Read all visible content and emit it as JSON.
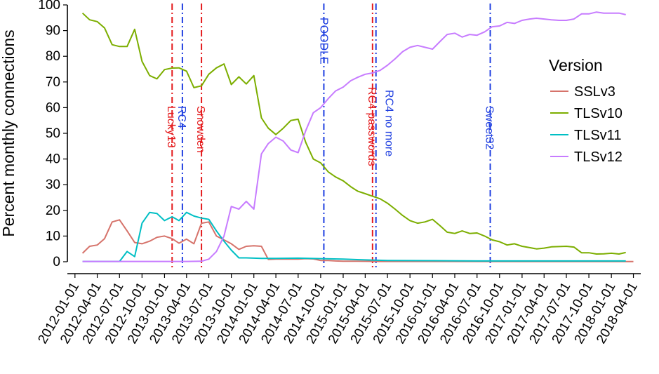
{
  "chart_data": {
    "type": "line",
    "title": "",
    "xlabel": "",
    "ylabel": "Percent monthly connections",
    "ylim": [
      0,
      100
    ],
    "yticks": [
      0,
      10,
      20,
      30,
      40,
      50,
      60,
      70,
      80,
      90,
      100
    ],
    "xlim": [
      "2011-12-01",
      "2018-05-01"
    ],
    "xticks": [
      "2012-01-01",
      "2012-04-01",
      "2012-07-01",
      "2012-10-01",
      "2013-01-01",
      "2013-04-01",
      "2013-07-01",
      "2013-10-01",
      "2014-01-01",
      "2014-04-01",
      "2014-07-01",
      "2014-10-01",
      "2015-01-01",
      "2015-04-01",
      "2015-07-01",
      "2015-10-01",
      "2016-01-01",
      "2016-04-01",
      "2016-07-01",
      "2016-10-01",
      "2017-01-01",
      "2017-04-01",
      "2017-07-01",
      "2017-10-01",
      "2018-01-01",
      "2018-04-01"
    ],
    "grid": false,
    "legend_title": "Version",
    "legend_position": "right",
    "series": [
      {
        "name": "SSLv3",
        "color": "#D6736B",
        "points": [
          [
            "2012-02-01",
            3.3
          ],
          [
            "2012-03-01",
            6
          ],
          [
            "2012-04-01",
            6.5
          ],
          [
            "2012-05-01",
            9
          ],
          [
            "2012-06-01",
            15.5
          ],
          [
            "2012-07-01",
            16.3
          ],
          [
            "2012-08-01",
            12
          ],
          [
            "2012-09-01",
            7.5
          ],
          [
            "2012-10-01",
            7
          ],
          [
            "2012-11-01",
            8
          ],
          [
            "2012-12-01",
            9.5
          ],
          [
            "2013-01-01",
            10
          ],
          [
            "2013-02-01",
            9
          ],
          [
            "2013-03-01",
            7.2
          ],
          [
            "2013-04-01",
            8.8
          ],
          [
            "2013-05-01",
            7
          ],
          [
            "2013-06-01",
            15
          ],
          [
            "2013-07-01",
            15.5
          ],
          [
            "2013-08-01",
            10
          ],
          [
            "2013-09-01",
            8.5
          ],
          [
            "2013-10-01",
            7
          ],
          [
            "2013-11-01",
            4.8
          ],
          [
            "2013-12-01",
            6
          ],
          [
            "2014-01-01",
            6.2
          ],
          [
            "2014-02-01",
            6
          ],
          [
            "2014-03-01",
            0.9
          ],
          [
            "2014-04-01",
            1
          ],
          [
            "2014-05-01",
            1
          ],
          [
            "2014-06-01",
            1
          ],
          [
            "2014-07-01",
            1
          ],
          [
            "2014-08-01",
            1.2
          ],
          [
            "2014-09-01",
            1.1
          ],
          [
            "2014-10-01",
            0.5
          ],
          [
            "2014-11-01",
            0.5
          ],
          [
            "2014-12-01",
            0.3
          ],
          [
            "2015-01-01",
            0.2
          ],
          [
            "2015-03-01",
            0.2
          ],
          [
            "2015-06-01",
            0.1
          ],
          [
            "2016-01-01",
            0.1
          ],
          [
            "2017-01-01",
            0.05
          ],
          [
            "2018-04-01",
            0.05
          ]
        ]
      },
      {
        "name": "TLSv10",
        "color": "#7CAE00",
        "points": [
          [
            "2012-02-01",
            96.8
          ],
          [
            "2012-03-01",
            94.2
          ],
          [
            "2012-04-01",
            93.5
          ],
          [
            "2012-05-01",
            91
          ],
          [
            "2012-06-01",
            84.5
          ],
          [
            "2012-07-01",
            83.8
          ],
          [
            "2012-08-01",
            83.8
          ],
          [
            "2012-09-01",
            90.5
          ],
          [
            "2012-10-01",
            78
          ],
          [
            "2012-11-01",
            72.5
          ],
          [
            "2012-12-01",
            71.2
          ],
          [
            "2013-01-01",
            74.8
          ],
          [
            "2013-02-01",
            75.4
          ],
          [
            "2013-03-01",
            75.5
          ],
          [
            "2013-04-01",
            74.2
          ],
          [
            "2013-05-01",
            67.8
          ],
          [
            "2013-06-01",
            68.5
          ],
          [
            "2013-07-01",
            73
          ],
          [
            "2013-08-01",
            75.5
          ],
          [
            "2013-09-01",
            77
          ],
          [
            "2013-10-01",
            69
          ],
          [
            "2013-11-01",
            72
          ],
          [
            "2013-12-01",
            69.2
          ],
          [
            "2014-01-01",
            72.5
          ],
          [
            "2014-02-01",
            56
          ],
          [
            "2014-03-01",
            52
          ],
          [
            "2014-04-01",
            49.5
          ],
          [
            "2014-05-01",
            52
          ],
          [
            "2014-06-01",
            55
          ],
          [
            "2014-07-01",
            55.5
          ],
          [
            "2014-08-01",
            46.5
          ],
          [
            "2014-09-01",
            40
          ],
          [
            "2014-10-01",
            38.5
          ],
          [
            "2014-11-01",
            35
          ],
          [
            "2014-12-01",
            33
          ],
          [
            "2015-01-01",
            31.5
          ],
          [
            "2015-02-01",
            29.2
          ],
          [
            "2015-03-01",
            27.5
          ],
          [
            "2015-04-01",
            26.5
          ],
          [
            "2015-05-01",
            25.5
          ],
          [
            "2015-06-01",
            24.5
          ],
          [
            "2015-07-01",
            22.8
          ],
          [
            "2015-08-01",
            20.5
          ],
          [
            "2015-09-01",
            18
          ],
          [
            "2015-10-01",
            16
          ],
          [
            "2015-11-01",
            15
          ],
          [
            "2015-12-01",
            15.5
          ],
          [
            "2016-01-01",
            16.5
          ],
          [
            "2016-02-01",
            14
          ],
          [
            "2016-03-01",
            11.5
          ],
          [
            "2016-04-01",
            11
          ],
          [
            "2016-05-01",
            12
          ],
          [
            "2016-06-01",
            11
          ],
          [
            "2016-07-01",
            11.2
          ],
          [
            "2016-08-01",
            10
          ],
          [
            "2016-09-01",
            8.5
          ],
          [
            "2016-10-01",
            7.8
          ],
          [
            "2016-11-01",
            6.5
          ],
          [
            "2016-12-01",
            7
          ],
          [
            "2017-01-01",
            6
          ],
          [
            "2017-02-01",
            5.5
          ],
          [
            "2017-03-01",
            5
          ],
          [
            "2017-04-01",
            5.3
          ],
          [
            "2017-05-01",
            5.8
          ],
          [
            "2017-06-01",
            5.9
          ],
          [
            "2017-07-01",
            6
          ],
          [
            "2017-08-01",
            5.7
          ],
          [
            "2017-09-01",
            3.5
          ],
          [
            "2017-10-01",
            3.5
          ],
          [
            "2017-11-01",
            3
          ],
          [
            "2017-12-01",
            3.1
          ],
          [
            "2018-01-01",
            3.3
          ],
          [
            "2018-02-01",
            3
          ],
          [
            "2018-03-01",
            3.6
          ]
        ]
      },
      {
        "name": "TLSv11",
        "color": "#00BFC4",
        "points": [
          [
            "2012-02-01",
            0.1
          ],
          [
            "2012-03-01",
            0.1
          ],
          [
            "2012-04-01",
            0.1
          ],
          [
            "2012-05-01",
            0.1
          ],
          [
            "2012-06-01",
            0.1
          ],
          [
            "2012-07-01",
            0.1
          ],
          [
            "2012-08-01",
            4
          ],
          [
            "2012-09-01",
            2
          ],
          [
            "2012-10-01",
            15
          ],
          [
            "2012-11-01",
            19.2
          ],
          [
            "2012-12-01",
            18.8
          ],
          [
            "2013-01-01",
            16
          ],
          [
            "2013-02-01",
            17.5
          ],
          [
            "2013-03-01",
            16
          ],
          [
            "2013-04-01",
            19.2
          ],
          [
            "2013-05-01",
            17.8
          ],
          [
            "2013-06-01",
            17
          ],
          [
            "2013-07-01",
            16.5
          ],
          [
            "2013-08-01",
            12
          ],
          [
            "2013-09-01",
            8
          ],
          [
            "2013-10-01",
            4.5
          ],
          [
            "2013-11-01",
            1.5
          ],
          [
            "2013-12-01",
            1.5
          ],
          [
            "2014-01-01",
            1.4
          ],
          [
            "2014-02-01",
            1.3
          ],
          [
            "2014-04-01",
            1.3
          ],
          [
            "2014-07-01",
            1.4
          ],
          [
            "2014-10-01",
            1.2
          ],
          [
            "2015-01-01",
            1
          ],
          [
            "2015-04-01",
            0.7
          ],
          [
            "2015-07-01",
            0.5
          ],
          [
            "2016-01-01",
            0.4
          ],
          [
            "2016-07-01",
            0.3
          ],
          [
            "2017-01-01",
            0.3
          ],
          [
            "2017-07-01",
            0.3
          ],
          [
            "2018-01-01",
            0.3
          ],
          [
            "2018-03-01",
            0.3
          ]
        ]
      },
      {
        "name": "TLSv12",
        "color": "#C77CFF",
        "points": [
          [
            "2012-02-01",
            0.1
          ],
          [
            "2012-06-01",
            0.1
          ],
          [
            "2012-10-01",
            0.1
          ],
          [
            "2013-01-01",
            0.1
          ],
          [
            "2013-04-01",
            0.1
          ],
          [
            "2013-06-01",
            0.2
          ],
          [
            "2013-07-01",
            1
          ],
          [
            "2013-08-01",
            4
          ],
          [
            "2013-09-01",
            10
          ],
          [
            "2013-10-01",
            21.5
          ],
          [
            "2013-11-01",
            20.5
          ],
          [
            "2013-12-01",
            23.5
          ],
          [
            "2014-01-01",
            20.5
          ],
          [
            "2014-02-01",
            42
          ],
          [
            "2014-03-01",
            46
          ],
          [
            "2014-04-01",
            48.5
          ],
          [
            "2014-05-01",
            47
          ],
          [
            "2014-06-01",
            43.5
          ],
          [
            "2014-07-01",
            42.5
          ],
          [
            "2014-08-01",
            51
          ],
          [
            "2014-09-01",
            58
          ],
          [
            "2014-10-01",
            60
          ],
          [
            "2014-11-01",
            63.5
          ],
          [
            "2014-12-01",
            66.5
          ],
          [
            "2015-01-01",
            68
          ],
          [
            "2015-02-01",
            70.5
          ],
          [
            "2015-03-01",
            71.8
          ],
          [
            "2015-04-01",
            73
          ],
          [
            "2015-05-01",
            73.5
          ],
          [
            "2015-06-01",
            74.5
          ],
          [
            "2015-07-01",
            76.5
          ],
          [
            "2015-08-01",
            79
          ],
          [
            "2015-09-01",
            81.8
          ],
          [
            "2015-10-01",
            83.5
          ],
          [
            "2015-11-01",
            84.2
          ],
          [
            "2015-12-01",
            83.5
          ],
          [
            "2016-01-01",
            82.8
          ],
          [
            "2016-02-01",
            85.8
          ],
          [
            "2016-03-01",
            88.5
          ],
          [
            "2016-04-01",
            89
          ],
          [
            "2016-05-01",
            87.5
          ],
          [
            "2016-06-01",
            88.5
          ],
          [
            "2016-07-01",
            88.2
          ],
          [
            "2016-08-01",
            89.5
          ],
          [
            "2016-09-01",
            91.5
          ],
          [
            "2016-10-01",
            91.8
          ],
          [
            "2016-11-01",
            93.2
          ],
          [
            "2016-12-01",
            92.8
          ],
          [
            "2017-01-01",
            94
          ],
          [
            "2017-02-01",
            94.5
          ],
          [
            "2017-03-01",
            94.8
          ],
          [
            "2017-04-01",
            94.5
          ],
          [
            "2017-05-01",
            94.2
          ],
          [
            "2017-06-01",
            94
          ],
          [
            "2017-07-01",
            94
          ],
          [
            "2017-08-01",
            94.5
          ],
          [
            "2017-09-01",
            96.5
          ],
          [
            "2017-10-01",
            96.5
          ],
          [
            "2017-11-01",
            97.2
          ],
          [
            "2017-12-01",
            96.8
          ],
          [
            "2018-01-01",
            96.8
          ],
          [
            "2018-02-01",
            96.8
          ],
          [
            "2018-03-01",
            96.2
          ]
        ]
      }
    ],
    "events": [
      {
        "date": "2013-02-01",
        "label": "Lucky13",
        "color": "#E41A1C"
      },
      {
        "date": "2013-03-15",
        "label": "RC4",
        "color": "#1F3FE0"
      },
      {
        "date": "2013-06-01",
        "label": "Snowden",
        "color": "#E41A1C"
      },
      {
        "date": "2014-10-14",
        "label": "POODLE",
        "color": "#1F3FE0"
      },
      {
        "date": "2015-05-01",
        "label": "RC4 passwords",
        "color": "#E41A1C"
      },
      {
        "date": "2015-05-15",
        "label": "RC4 no more",
        "color": "#1F3FE0"
      },
      {
        "date": "2016-08-24",
        "label": "Sweet32",
        "color": "#1F3FE0"
      }
    ]
  }
}
